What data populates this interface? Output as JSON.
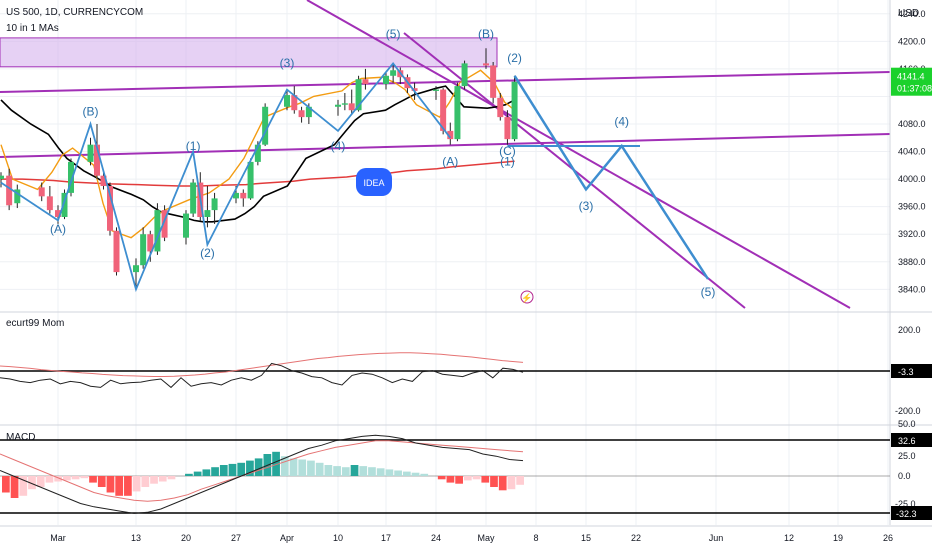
{
  "header": {
    "symbol_line": "US 500, 1D, CURRENCYCOM",
    "indicator_line": "10 in 1 MAs",
    "currency": "USD"
  },
  "price_tag": {
    "value": "4141.4",
    "time": "01:37:08",
    "color": "#1bd12c"
  },
  "idea_badge": {
    "label": "IDEA",
    "color": "#2962ff"
  },
  "colors": {
    "up": "#36c06a",
    "down": "#f0637a",
    "zone": "#d6b3ec",
    "channel": "#a12fb6",
    "projection": "#3e8ed0",
    "ma_black": "#000000",
    "ma_orange": "#f39c12",
    "ma_red": "#e23b3b",
    "ma_yellow": "#f5d000"
  },
  "chart_data": {
    "type": "candlestick",
    "symbol": "US 500",
    "timeframe": "1D",
    "price_axis": {
      "ylim": [
        3810,
        4260
      ],
      "ticks": [
        3840,
        3880,
        3920,
        3960,
        4000,
        4040,
        4080,
        4120,
        4160,
        4200,
        4240
      ]
    },
    "x_axis": {
      "ticks": [
        "Mar",
        "13",
        "20",
        "27",
        "Apr",
        "10",
        "17",
        "24",
        "May",
        "8",
        "15",
        "22",
        "Jun",
        "12",
        "19",
        "26"
      ]
    },
    "candles": [
      {
        "date": "Feb 22",
        "o": 4000,
        "h": 4010,
        "l": 3988,
        "c": 4005
      },
      {
        "date": "Feb 23",
        "o": 4005,
        "h": 4015,
        "l": 3955,
        "c": 3962
      },
      {
        "date": "Feb 24",
        "o": 3965,
        "h": 3992,
        "l": 3958,
        "c": 3985
      },
      {
        "date": "Feb 27",
        "o": 3988,
        "h": 3995,
        "l": 3968,
        "c": 3975
      },
      {
        "date": "Feb 28",
        "o": 3975,
        "h": 3990,
        "l": 3950,
        "c": 3955
      },
      {
        "date": "Mar 1",
        "o": 3955,
        "h": 3962,
        "l": 3935,
        "c": 3945
      },
      {
        "date": "Mar 2",
        "o": 3945,
        "h": 3985,
        "l": 3942,
        "c": 3980
      },
      {
        "date": "Mar 3",
        "o": 3980,
        "h": 4030,
        "l": 3975,
        "c": 4025
      },
      {
        "date": "Mar 6",
        "o": 4025,
        "h": 4060,
        "l": 4020,
        "c": 4050
      },
      {
        "date": "Mar 7",
        "o": 4050,
        "h": 4080,
        "l": 4000,
        "c": 4005
      },
      {
        "date": "Mar 8",
        "o": 4005,
        "h": 4010,
        "l": 3985,
        "c": 3990
      },
      {
        "date": "Mar 9",
        "o": 3990,
        "h": 3995,
        "l": 3918,
        "c": 3925
      },
      {
        "date": "Mar 10",
        "o": 3925,
        "h": 3930,
        "l": 3860,
        "c": 3865
      },
      {
        "date": "Mar 13",
        "o": 3865,
        "h": 3885,
        "l": 3840,
        "c": 3875
      },
      {
        "date": "Mar 14",
        "o": 3875,
        "h": 3930,
        "l": 3870,
        "c": 3920
      },
      {
        "date": "Mar 15",
        "o": 3920,
        "h": 3925,
        "l": 3880,
        "c": 3895
      },
      {
        "date": "Mar 16",
        "o": 3895,
        "h": 3965,
        "l": 3890,
        "c": 3955
      },
      {
        "date": "Mar 17",
        "o": 3955,
        "h": 3962,
        "l": 3910,
        "c": 3915
      },
      {
        "date": "Mar 20",
        "o": 3915,
        "h": 3955,
        "l": 3905,
        "c": 3950
      },
      {
        "date": "Mar 21",
        "o": 3950,
        "h": 4000,
        "l": 3945,
        "c": 3995
      },
      {
        "date": "Mar 22",
        "o": 3995,
        "h": 4010,
        "l": 3940,
        "c": 3945
      },
      {
        "date": "Mar 23",
        "o": 3945,
        "h": 3990,
        "l": 3930,
        "c": 3955
      },
      {
        "date": "Mar 24",
        "o": 3955,
        "h": 3980,
        "l": 3935,
        "c": 3972
      },
      {
        "date": "Mar 27",
        "o": 3972,
        "h": 3990,
        "l": 3965,
        "c": 3980
      },
      {
        "date": "Mar 28",
        "o": 3980,
        "h": 3985,
        "l": 3960,
        "c": 3972
      },
      {
        "date": "Mar 29",
        "o": 3972,
        "h": 4030,
        "l": 3970,
        "c": 4025
      },
      {
        "date": "Mar 30",
        "o": 4025,
        "h": 4055,
        "l": 4020,
        "c": 4050
      },
      {
        "date": "Mar 31",
        "o": 4050,
        "h": 4110,
        "l": 4048,
        "c": 4105
      },
      {
        "date": "Apr 3",
        "o": 4105,
        "h": 4130,
        "l": 4100,
        "c": 4122
      },
      {
        "date": "Apr 4",
        "o": 4122,
        "h": 4135,
        "l": 4095,
        "c": 4100
      },
      {
        "date": "Apr 5",
        "o": 4100,
        "h": 4105,
        "l": 4082,
        "c": 4090
      },
      {
        "date": "Apr 6",
        "o": 4090,
        "h": 4110,
        "l": 4080,
        "c": 4105
      },
      {
        "date": "Apr 10",
        "o": 4105,
        "h": 4115,
        "l": 4092,
        "c": 4108
      },
      {
        "date": "Apr 11",
        "o": 4108,
        "h": 4125,
        "l": 4100,
        "c": 4110
      },
      {
        "date": "Apr 12",
        "o": 4110,
        "h": 4130,
        "l": 4095,
        "c": 4100
      },
      {
        "date": "Apr 13",
        "o": 4100,
        "h": 4150,
        "l": 4098,
        "c": 4145
      },
      {
        "date": "Apr 14",
        "o": 4145,
        "h": 4160,
        "l": 4130,
        "c": 4138
      },
      {
        "date": "Apr 17",
        "o": 4138,
        "h": 4155,
        "l": 4130,
        "c": 4150
      },
      {
        "date": "Apr 18",
        "o": 4150,
        "h": 4168,
        "l": 4140,
        "c": 4158
      },
      {
        "date": "Apr 19",
        "o": 4158,
        "h": 4162,
        "l": 4138,
        "c": 4148
      },
      {
        "date": "Apr 20",
        "o": 4148,
        "h": 4152,
        "l": 4125,
        "c": 4132
      },
      {
        "date": "Apr 21",
        "o": 4132,
        "h": 4140,
        "l": 4115,
        "c": 4128
      },
      {
        "date": "Apr 24",
        "o": 4128,
        "h": 4135,
        "l": 4115,
        "c": 4130
      },
      {
        "date": "Apr 25",
        "o": 4130,
        "h": 4132,
        "l": 4065,
        "c": 4070
      },
      {
        "date": "Apr 26",
        "o": 4070,
        "h": 4082,
        "l": 4050,
        "c": 4058
      },
      {
        "date": "Apr 27",
        "o": 4058,
        "h": 4140,
        "l": 4055,
        "c": 4135
      },
      {
        "date": "Apr 28",
        "o": 4135,
        "h": 4172,
        "l": 4130,
        "c": 4168
      },
      {
        "date": "May 1",
        "o": 4168,
        "h": 4190,
        "l": 4160,
        "c": 4165
      },
      {
        "date": "May 2",
        "o": 4165,
        "h": 4170,
        "l": 4110,
        "c": 4118
      },
      {
        "date": "May 3",
        "o": 4118,
        "h": 4125,
        "l": 4085,
        "c": 4090
      },
      {
        "date": "May 4",
        "o": 4090,
        "h": 4100,
        "l": 4050,
        "c": 4058
      },
      {
        "date": "May 5",
        "o": 4058,
        "h": 4150,
        "l": 4055,
        "c": 4141.4
      }
    ],
    "moving_averages": [
      {
        "name": "MA black",
        "color": "#000000",
        "values": [
          4115,
          4100,
          4080,
          4065,
          4045,
          4030,
          4012,
          4002,
          3995,
          3988,
          3978,
          3970,
          3960,
          3952,
          3945,
          3940,
          3938,
          3938,
          3942,
          3950,
          3960,
          3975,
          3990,
          4010,
          4030,
          4050,
          4070,
          4085,
          4095,
          4100,
          4108,
          4115,
          4122,
          4132,
          4135,
          4120,
          4105,
          4103,
          4105,
          4108,
          4115
        ]
      },
      {
        "name": "MA orange",
        "color": "#f39c12",
        "values": [
          4050,
          4000,
          3985,
          4010,
          4035,
          4045,
          4020,
          3965,
          3925,
          3915,
          3930,
          3945,
          3955,
          3970,
          3975,
          3980,
          4000,
          4030,
          4060,
          4090,
          4105,
          4110,
          4120,
          4128,
          4140,
          4146,
          4148,
          4140,
          4130,
          4108,
          4090,
          4112,
          4140,
          4158,
          4140,
          4112,
          4100
        ]
      },
      {
        "name": "MA red",
        "color": "#e23b3b",
        "values": [
          4000,
          4000,
          3998,
          3996,
          3994,
          3993,
          3992,
          3991,
          3990,
          3990,
          3991,
          3992,
          3994,
          3997,
          4000,
          4003,
          4006,
          4009,
          4012,
          4015,
          4018,
          4021,
          4024,
          4026
        ]
      }
    ],
    "annotations": {
      "waves": [
        {
          "label": "(A)",
          "date": "Mar 1",
          "price": 3922
        },
        {
          "label": "(B)",
          "date": "Mar 6",
          "price": 4092
        },
        {
          "label": "(1)",
          "date": "Mar 21",
          "price": 4042
        },
        {
          "label": "(2)",
          "date": "Mar 23",
          "price": 3887
        },
        {
          "label": "(3)",
          "date": "Apr 3",
          "price": 4163
        },
        {
          "label": "(4)",
          "date": "Apr 10",
          "price": 4042
        },
        {
          "label": "(5)",
          "date": "Apr 18",
          "price": 4205
        },
        {
          "label": "(A)",
          "date": "Apr 26",
          "price": 4020
        },
        {
          "label": "(B)",
          "date": "May 1",
          "price": 4205
        },
        {
          "label": "(C)",
          "date": "May 4",
          "price": 4035
        },
        {
          "label": "(1)",
          "date": "May 4",
          "price": 4020
        },
        {
          "label": "(2)",
          "date": "May 5",
          "price": 4170
        },
        {
          "label": "(3)",
          "date": "May 15",
          "price": 3955
        },
        {
          "label": "(4)",
          "date": "May 20",
          "price": 4078
        },
        {
          "label": "(5)",
          "date": "May 31",
          "price": 3830
        }
      ],
      "resistance_zone": {
        "from_price": 4163,
        "to_price": 4205
      },
      "projection_path": [
        {
          "date": "May 5",
          "price": 4150
        },
        {
          "date": "May 15",
          "price": 3985
        },
        {
          "date": "May 20",
          "price": 4048
        },
        {
          "date": "May 31",
          "price": 3855
        }
      ]
    },
    "momentum": {
      "name": "ecurt99 Mom",
      "current": "-3.3",
      "ticks": [
        "200.0",
        "-200.0"
      ]
    },
    "macd": {
      "name": "MACD",
      "current_levels": [
        "32.6",
        "-32.3"
      ],
      "ticks": [
        "50.0",
        "25.0",
        "0.0",
        "-25.0"
      ],
      "histogram": [
        -15,
        -20,
        -18,
        -12,
        -10,
        -6,
        -5,
        -4,
        -3,
        -2,
        -6,
        -10,
        -15,
        -18,
        -18,
        -14,
        -10,
        -7,
        -5,
        -3,
        0,
        2,
        4,
        6,
        8,
        10,
        11,
        12,
        14,
        16,
        20,
        22,
        18,
        16,
        15,
        14,
        12,
        10,
        9,
        8,
        10,
        9,
        8,
        7,
        6,
        5,
        4,
        3,
        2,
        0,
        -3,
        -6,
        -7,
        -4,
        -3,
        -6,
        -10,
        -13,
        -12,
        -8
      ]
    }
  }
}
